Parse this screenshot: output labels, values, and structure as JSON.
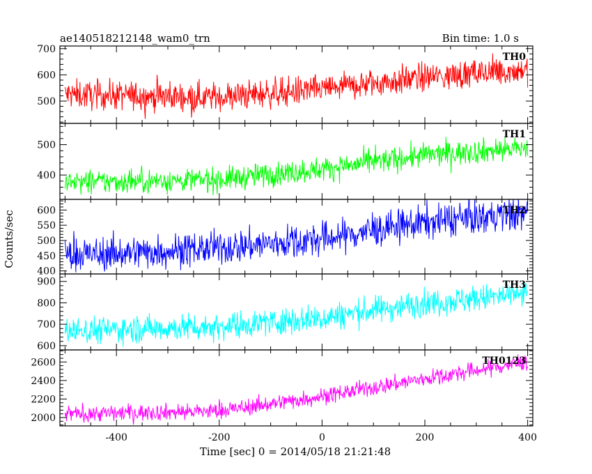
{
  "header": {
    "title": "ae140518212148_wam0_trn",
    "bin_time": "Bin time: 1.0 s"
  },
  "chart_data": {
    "type": "line",
    "title": "ae140518212148_wam0_trn",
    "xlabel": "Time [sec] 0 = 2014/05/18 21:21:48",
    "ylabel": "Counts/sec",
    "xlim": [
      -510,
      410
    ],
    "x_ticks": [
      -400,
      -200,
      0,
      200,
      400
    ],
    "x_range": [
      -500,
      400
    ],
    "bin_time": 1.0,
    "grid": false,
    "panels": [
      {
        "name": "TH0",
        "color": "#ff0000",
        "ylim": [
          415,
          710
        ],
        "y_ticks": [
          500,
          600,
          700
        ],
        "trend": [
          [
            -500,
            525
          ],
          [
            -200,
            515
          ],
          [
            0,
            545
          ],
          [
            200,
            590
          ],
          [
            400,
            620
          ]
        ],
        "noise": 28
      },
      {
        "name": "TH1",
        "color": "#00ff00",
        "ylim": [
          320,
          570
        ],
        "y_ticks": [
          400,
          500
        ],
        "trend": [
          [
            -500,
            375
          ],
          [
            -200,
            385
          ],
          [
            0,
            420
          ],
          [
            200,
            465
          ],
          [
            400,
            490
          ]
        ],
        "noise": 20
      },
      {
        "name": "TH2",
        "color": "#0000ff",
        "ylim": [
          390,
          635
        ],
        "y_ticks": [
          400,
          450,
          500,
          550,
          600
        ],
        "trend": [
          [
            -500,
            450
          ],
          [
            -200,
            475
          ],
          [
            0,
            505
          ],
          [
            200,
            560
          ],
          [
            400,
            590
          ]
        ],
        "noise": 28
      },
      {
        "name": "TH3",
        "color": "#00ffff",
        "ylim": [
          580,
          935
        ],
        "y_ticks": [
          600,
          700,
          800,
          900
        ],
        "trend": [
          [
            -500,
            670
          ],
          [
            -200,
            690
          ],
          [
            0,
            730
          ],
          [
            200,
            800
          ],
          [
            400,
            840
          ]
        ],
        "noise": 32
      },
      {
        "name": "TH0123",
        "color": "#ff00ff",
        "ylim": [
          1910,
          2730
        ],
        "y_ticks": [
          2000,
          2200,
          2400,
          2600
        ],
        "trend": [
          [
            -500,
            2040
          ],
          [
            -200,
            2070
          ],
          [
            0,
            2230
          ],
          [
            200,
            2420
          ],
          [
            400,
            2600
          ]
        ],
        "noise": 45
      }
    ]
  }
}
